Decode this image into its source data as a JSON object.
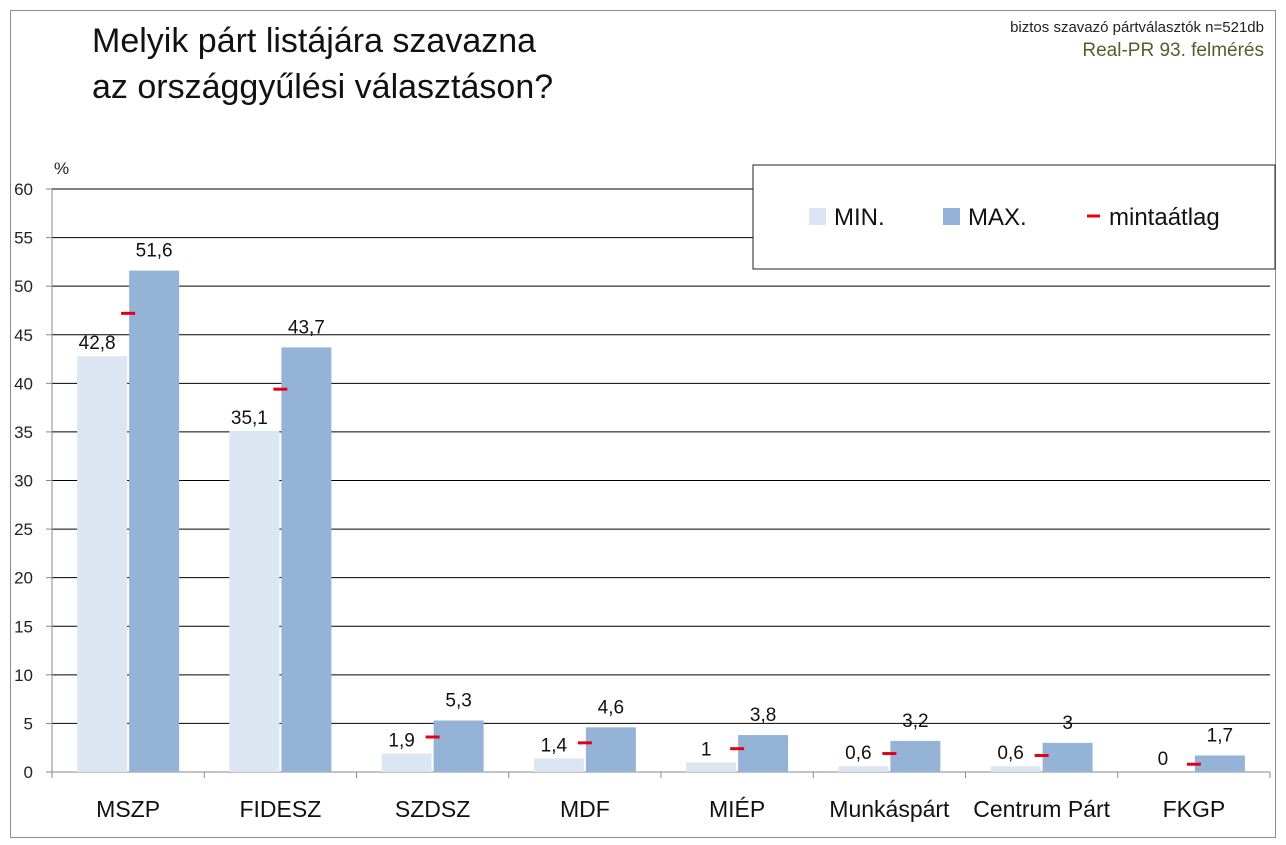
{
  "title": "Melyik párt listájára szavazna\naz országgyűlési választáson?",
  "sample_note": "biztos szavazó pártválasztók n=521db",
  "source_note": "Real-PR 93. felmérés",
  "colors": {
    "min": "#dce6f2",
    "max": "#95b3d7",
    "mean": "#e3001b",
    "grid": "#000000",
    "source_text": "#4f6228"
  },
  "chart_data": {
    "type": "bar",
    "ylabel": "%",
    "ylim": [
      0,
      60
    ],
    "yticks": [
      0,
      5,
      10,
      15,
      20,
      25,
      30,
      35,
      40,
      45,
      50,
      55,
      60
    ],
    "grid": true,
    "legend_position": "top-right",
    "categories": [
      "MSZP",
      "FIDESZ",
      "SZDSZ",
      "MDF",
      "MIÉP",
      "Munkáspárt",
      "Centrum Párt",
      "FKGP"
    ],
    "series": [
      {
        "name": "MIN.",
        "kind": "bar",
        "values": [
          42.8,
          35.1,
          1.9,
          1.4,
          1,
          0.6,
          0.6,
          0
        ],
        "labels": [
          "42,8",
          "35,1",
          "1,9",
          "1,4",
          "1",
          "0,6",
          "0,6",
          "0"
        ]
      },
      {
        "name": "MAX.",
        "kind": "bar",
        "values": [
          51.6,
          43.7,
          5.3,
          4.6,
          3.8,
          3.2,
          3,
          1.7
        ],
        "labels": [
          "51,6",
          "43,7",
          "5,3",
          "4,6",
          "3,8",
          "3,2",
          "3",
          "1,7"
        ]
      },
      {
        "name": "mintaátlag",
        "kind": "marker",
        "values": [
          47.2,
          39.4,
          3.6,
          3.0,
          2.4,
          1.9,
          1.7,
          0.8
        ]
      }
    ]
  }
}
